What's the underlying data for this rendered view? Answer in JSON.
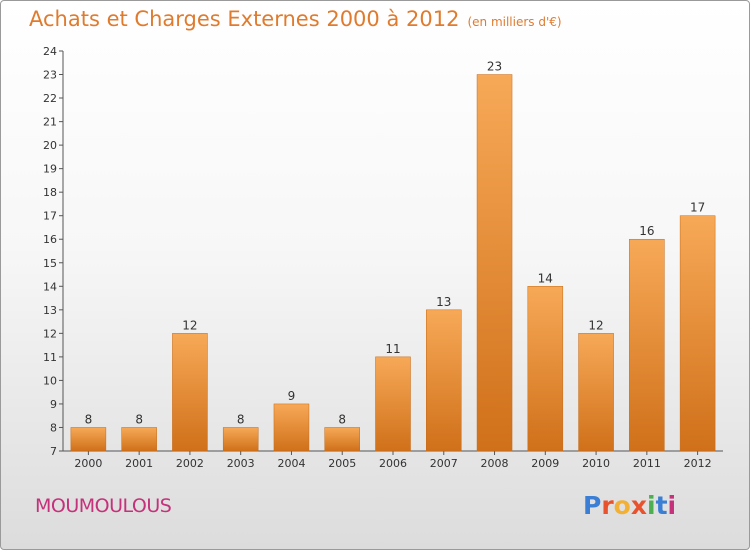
{
  "header": {
    "title": "Achats et Charges Externes 2000 à 2012",
    "subtitle": "(en milliers d'€)"
  },
  "footer": {
    "commune": "MOUMOULOUS",
    "logo": "Proxiti",
    "logo_colors": [
      "#3a7fd5",
      "#e8532d",
      "#f2b134",
      "#e8532d",
      "#4caf50",
      "#3a7fd5",
      "#c5317a"
    ]
  },
  "colors": {
    "title": "#e07b2e",
    "commune": "#c5317a",
    "bar_light": "#f5a44e",
    "bar_dark": "#d4741c"
  },
  "chart_data": {
    "type": "bar",
    "title": "Achats et Charges Externes 2000 à 2012",
    "subtitle": "(en milliers d'€)",
    "categories": [
      "2000",
      "2001",
      "2002",
      "2003",
      "2004",
      "2005",
      "2006",
      "2007",
      "2008",
      "2009",
      "2010",
      "2011",
      "2012"
    ],
    "values": [
      8,
      8,
      12,
      8,
      9,
      8,
      11,
      13,
      23,
      14,
      12,
      16,
      17
    ],
    "ylim": [
      7,
      24
    ],
    "yticks": [
      7,
      8,
      9,
      10,
      11,
      12,
      13,
      14,
      15,
      16,
      17,
      18,
      19,
      20,
      21,
      22,
      23,
      24
    ],
    "xlabel": "",
    "ylabel": "",
    "grid": false,
    "legend": "none"
  }
}
